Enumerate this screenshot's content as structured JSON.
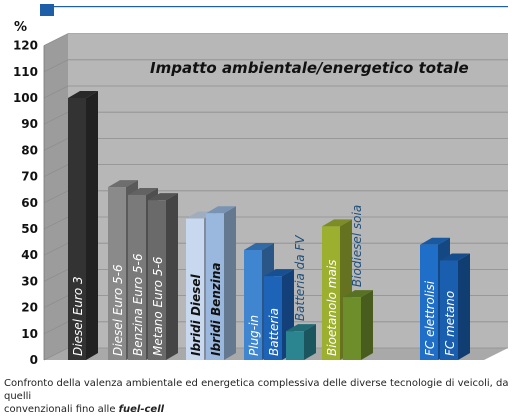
{
  "chart_data": {
    "type": "bar",
    "title": "Impatto ambientale/energetico totale",
    "ylabel": "%",
    "ylim": [
      0,
      120
    ],
    "yticks": [
      0,
      10,
      20,
      30,
      40,
      50,
      60,
      70,
      80,
      90,
      100,
      110,
      120
    ],
    "grid": true,
    "style": "3d",
    "bars": [
      {
        "label": "Diesel  Euro 3",
        "value": 100,
        "color": "#333333"
      },
      {
        "label": "Diesel  Euro 5-6",
        "value": 66,
        "color": "#8a8a8a"
      },
      {
        "label": "Benzina  Euro 5-6",
        "value": 63,
        "color": "#7a7a7a"
      },
      {
        "label": "Metano  Euro 5-6",
        "value": 61,
        "color": "#6a6a6a"
      },
      {
        "label": "Ibridi  Diesel",
        "value": 54,
        "color": "#c8d8ef"
      },
      {
        "label": "Ibridi  Benzina",
        "value": 56,
        "color": "#9ab8de"
      },
      {
        "label": "Plug-in",
        "value": 42,
        "color": "#3f85cf"
      },
      {
        "label": "Batteria",
        "value": 32,
        "color": "#1d63b8"
      },
      {
        "label": "Batteria  da FV",
        "value": 11,
        "color": "#2a8590"
      },
      {
        "label": "Bioetanolo mais",
        "value": 51,
        "color": "#9caf2f"
      },
      {
        "label": "Biodiesel soia",
        "value": 24,
        "color": "#6e8e2c"
      },
      {
        "label": "FC  elettrolisi",
        "value": 44,
        "color": "#1f6fc8"
      },
      {
        "label": "FC metano",
        "value": 38,
        "color": "#1a5faf"
      }
    ]
  },
  "caption": {
    "line1": "Confronto della valenza ambientale ed energetica complessiva delle diverse tecnologie di veicoli, da quelli",
    "line2_prefix": "convenzionali fino alle ",
    "line2_emphasis": "fuel-cell"
  },
  "colors": {
    "frame_accent": "#1f5fa8",
    "back_wall": "#b7b7b7",
    "side_wall": "#9c9c9c",
    "floor": "#a9a9a9"
  }
}
